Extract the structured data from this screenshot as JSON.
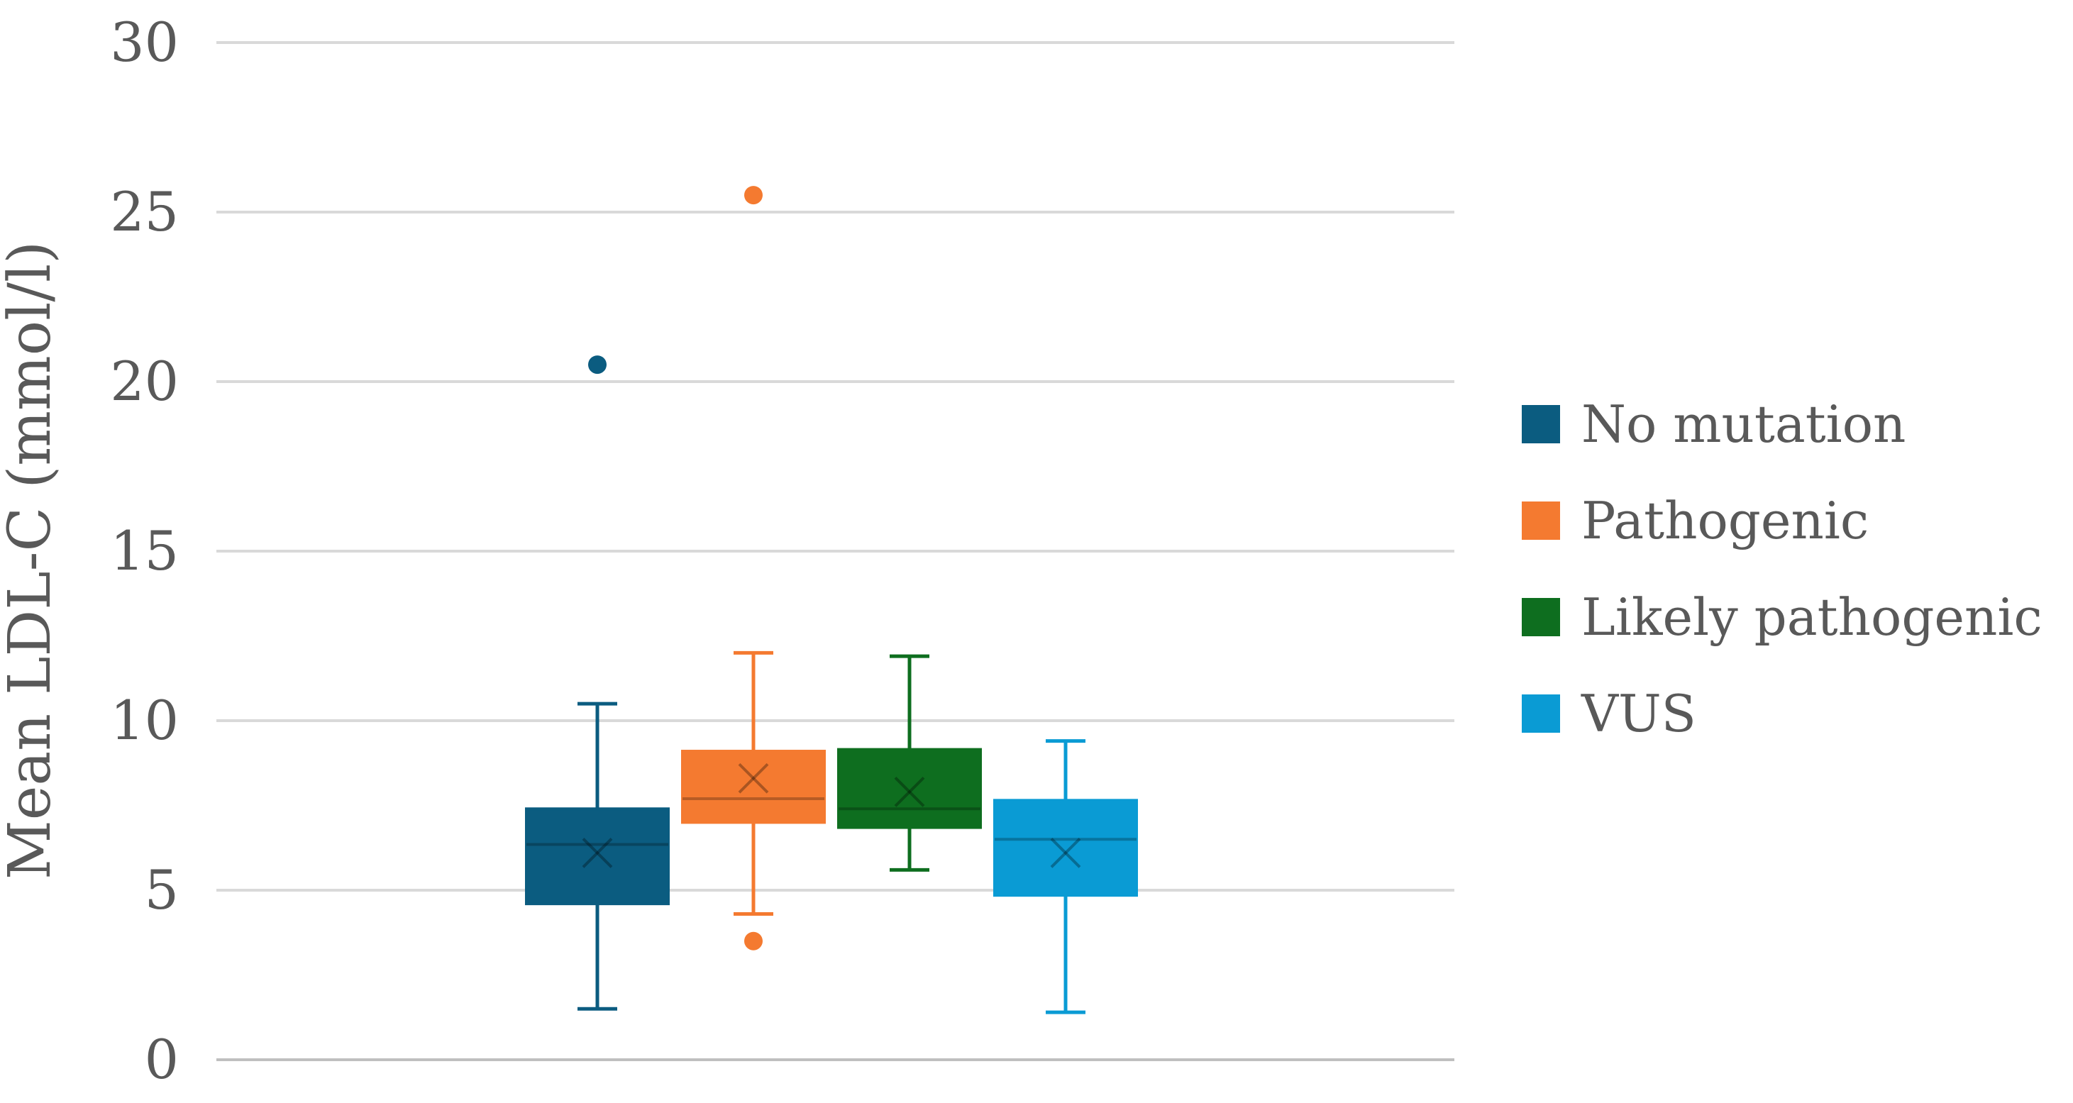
{
  "chart_data": {
    "type": "box",
    "title": "",
    "xlabel": "",
    "ylabel": "Mean LDL-C (mmol/l)",
    "ylim": [
      0,
      30
    ],
    "yticks": [
      "0",
      "5",
      "10",
      "15",
      "20",
      "25",
      "30"
    ],
    "grid": true,
    "legend_position": "right",
    "series": [
      {
        "name": "No mutation",
        "color": "#0B5C80",
        "min": 1.5,
        "q1": 4.6,
        "median": 6.35,
        "q3": 7.4,
        "max": 10.5,
        "mean": 6.1,
        "outliers": [
          20.5
        ]
      },
      {
        "name": "Pathogenic",
        "color": "#F47A30",
        "min": 4.3,
        "q1": 7.0,
        "median": 7.7,
        "q3": 9.1,
        "max": 12.0,
        "mean": 8.3,
        "outliers": [
          25.5,
          3.5
        ]
      },
      {
        "name": "Likely pathogenic",
        "color": "#0E6E1F",
        "min": 5.6,
        "q1": 6.85,
        "median": 7.4,
        "q3": 9.15,
        "max": 11.9,
        "mean": 7.9,
        "outliers": []
      },
      {
        "name": "VUS",
        "color": "#0A9BD4",
        "min": 1.4,
        "q1": 4.85,
        "median": 6.5,
        "q3": 7.65,
        "max": 9.4,
        "mean": 6.1,
        "outliers": []
      }
    ]
  }
}
